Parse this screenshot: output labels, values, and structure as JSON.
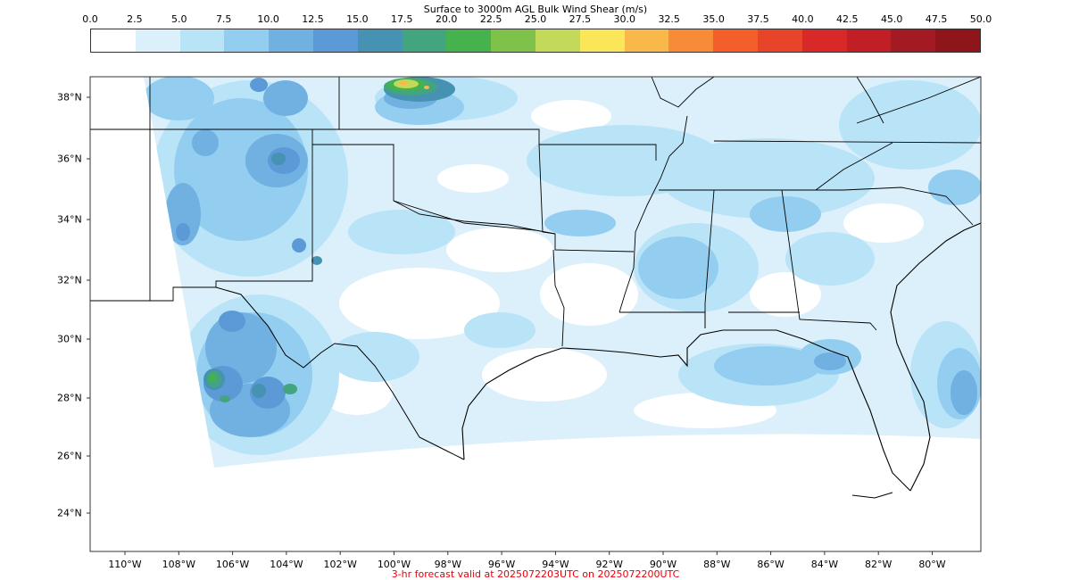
{
  "colorbar": {
    "title": "Surface to 3000m AGL Bulk Wind Shear (m/s)",
    "ticks": [
      "0.0",
      "2.5",
      "5.0",
      "7.5",
      "10.0",
      "12.5",
      "15.0",
      "17.5",
      "20.0",
      "22.5",
      "25.0",
      "27.5",
      "30.0",
      "32.5",
      "35.0",
      "37.5",
      "40.0",
      "42.5",
      "45.0",
      "47.5",
      "50.0"
    ],
    "colors": [
      "#ffffff",
      "#dcf0fb",
      "#b9e3f7",
      "#93cdf0",
      "#70b1e2",
      "#5b9ad6",
      "#4592b2",
      "#43a580",
      "#45b24e",
      "#7ec24a",
      "#c3d95a",
      "#fbe65a",
      "#f9b84a",
      "#f78b37",
      "#f35e2b",
      "#e8442a",
      "#d82828",
      "#c11e26",
      "#a41a22",
      "#8e1519"
    ]
  },
  "map": {
    "lat_labels": [
      "38°N",
      "36°N",
      "34°N",
      "32°N",
      "30°N",
      "28°N",
      "26°N",
      "24°N"
    ],
    "lon_labels": [
      "110°W",
      "108°W",
      "106°W",
      "104°W",
      "102°W",
      "100°W",
      "98°W",
      "96°W",
      "94°W",
      "92°W",
      "90°W",
      "88°W",
      "86°W",
      "84°W",
      "82°W",
      "80°W"
    ]
  },
  "footer": "3-hr forecast valid at 2025072203UTC on 2025072200UTC"
}
